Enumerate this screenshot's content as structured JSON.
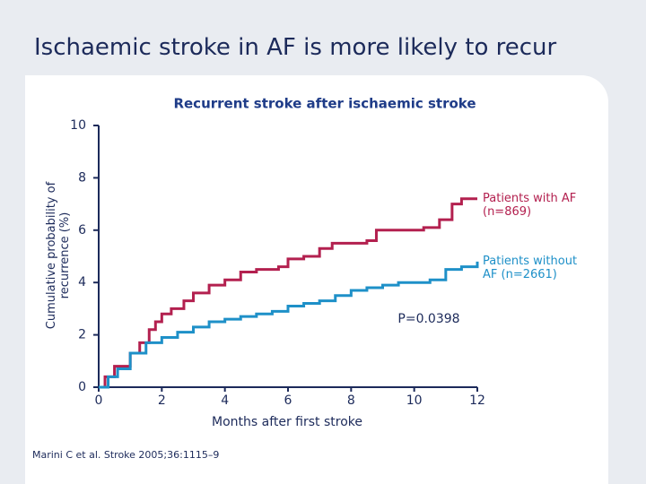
{
  "title": "Ischaemic stroke in AF is more likely to recur",
  "footnote": "Marini C et al. Stroke 2005;36:1115–9",
  "chart_data": {
    "type": "line",
    "step": true,
    "title": "Recurrent stroke after ischaemic stroke",
    "x_label": "Months after first stroke",
    "y_label": "Cumulative probability of recurrence (%)",
    "annotation": "P=0.0398",
    "xlim": [
      0,
      12
    ],
    "xticks": [
      0,
      2,
      4,
      6,
      8,
      10,
      12
    ],
    "ylim": [
      0,
      10
    ],
    "yticks": [
      0,
      2,
      4,
      6,
      8,
      10
    ],
    "series": [
      {
        "name": "Patients with AF (n=869)",
        "color": "#b3204f",
        "x": [
          0,
          0.2,
          0.5,
          1,
          1.3,
          1.6,
          1.8,
          2,
          2.3,
          2.7,
          3,
          3.5,
          4,
          4.5,
          5,
          5.7,
          6,
          6.5,
          7,
          7.4,
          8.5,
          8.8,
          10.3,
          10.8,
          11.2,
          11.5,
          12
        ],
        "values": [
          0,
          0.4,
          0.8,
          1.3,
          1.7,
          2.2,
          2.5,
          2.8,
          3.0,
          3.3,
          3.6,
          3.9,
          4.1,
          4.4,
          4.5,
          4.6,
          4.9,
          5.0,
          5.3,
          5.5,
          5.6,
          6.0,
          6.1,
          6.4,
          7.0,
          7.2,
          7.2
        ]
      },
      {
        "name": "Patients without AF (n=2661)",
        "color": "#1e90c8",
        "x": [
          0,
          0.3,
          0.6,
          1,
          1.5,
          2,
          2.5,
          3,
          3.5,
          4,
          4.5,
          5,
          5.5,
          6,
          6.5,
          7,
          7.5,
          8,
          8.5,
          9,
          9.5,
          10.5,
          11,
          11.5,
          12
        ],
        "values": [
          0,
          0.4,
          0.7,
          1.3,
          1.7,
          1.9,
          2.1,
          2.3,
          2.5,
          2.6,
          2.7,
          2.8,
          2.9,
          3.1,
          3.2,
          3.3,
          3.5,
          3.7,
          3.8,
          3.9,
          4.0,
          4.1,
          4.5,
          4.6,
          4.8
        ]
      }
    ]
  }
}
